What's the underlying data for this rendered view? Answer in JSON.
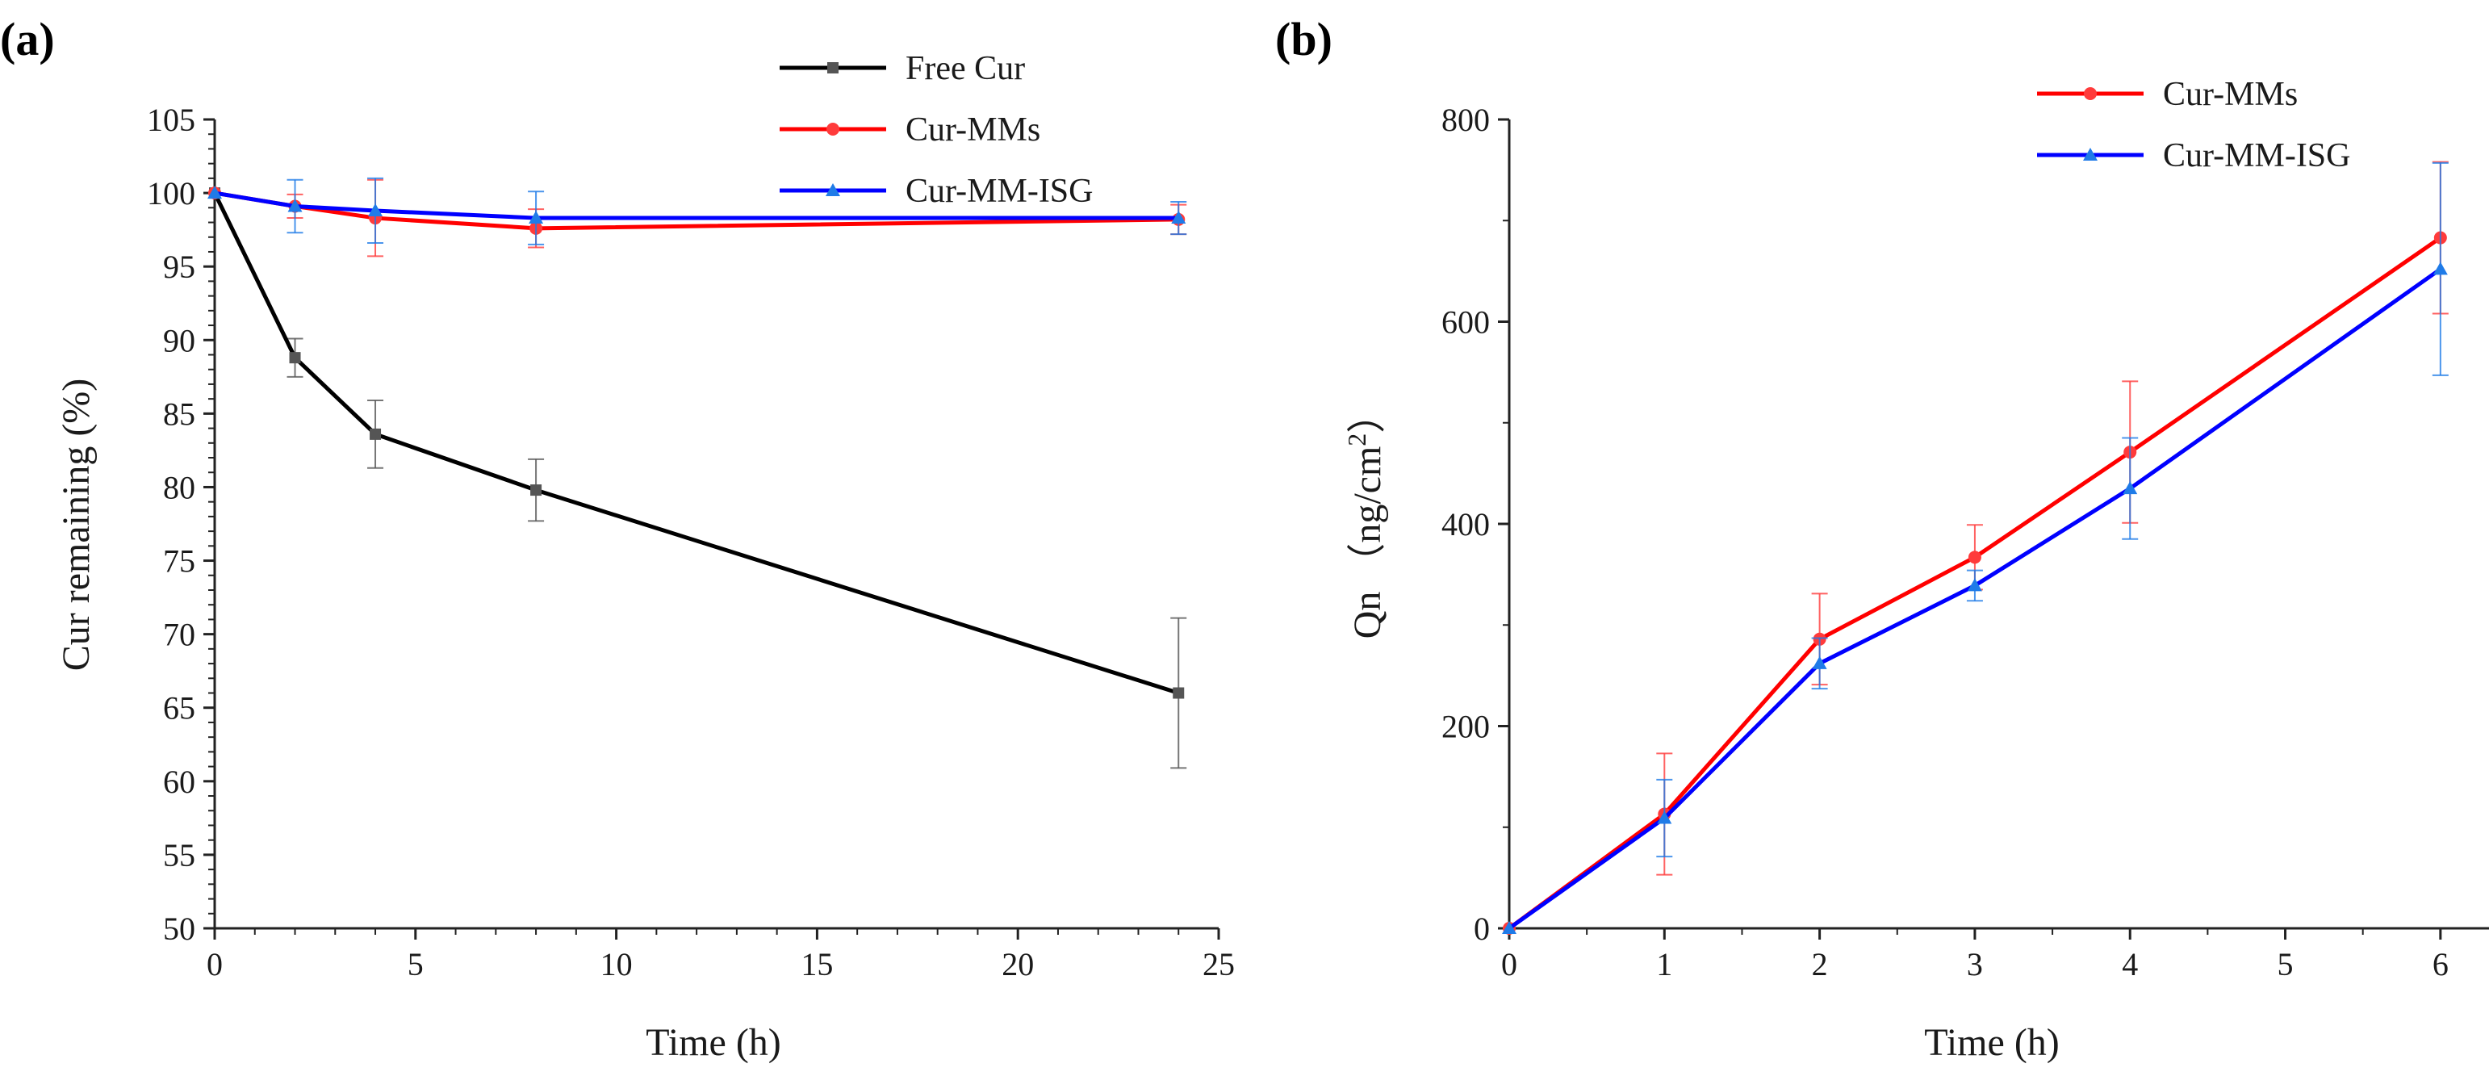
{
  "chart_data": [
    {
      "panel_label": "(a)",
      "type": "line",
      "xlabel": "Time (h)",
      "ylabel": "Cur remaining (%)",
      "xlim": [
        0,
        25
      ],
      "ylim": [
        50,
        105
      ],
      "xticks": [
        0,
        5,
        10,
        15,
        20,
        25
      ],
      "yticks": [
        50,
        55,
        60,
        65,
        70,
        75,
        80,
        85,
        90,
        95,
        100,
        105
      ],
      "grid": false,
      "legend_position": "top-center",
      "series": [
        {
          "name": "Free Cur",
          "color": "#000000",
          "marker": "square",
          "marker_color": "#555555",
          "x": [
            0,
            2,
            4,
            8,
            24
          ],
          "y": [
            100,
            88.8,
            83.6,
            79.8,
            66.0
          ],
          "err": [
            0,
            1.3,
            2.3,
            2.1,
            5.1
          ]
        },
        {
          "name": "Cur-MMs",
          "color": "#ff0000",
          "marker": "circle",
          "marker_color": "#ff3b3b",
          "x": [
            0,
            2,
            4,
            8,
            24
          ],
          "y": [
            100,
            99.1,
            98.3,
            97.6,
            98.2
          ],
          "err": [
            0,
            0.8,
            2.6,
            1.3,
            1.0
          ]
        },
        {
          "name": "Cur-MM-ISG",
          "color": "#0000ff",
          "marker": "triangle",
          "marker_color": "#1f7be8",
          "x": [
            0,
            2,
            4,
            8,
            24
          ],
          "y": [
            100,
            99.1,
            98.8,
            98.3,
            98.3
          ],
          "err": [
            0,
            1.8,
            2.2,
            1.8,
            1.1
          ]
        }
      ]
    },
    {
      "panel_label": "(b)",
      "type": "line",
      "xlabel": "Time (h)",
      "ylabel_main": "Qn （ng/cm",
      "ylabel_sup": "2",
      "ylabel_end": "）",
      "xlim": [
        0,
        6.5
      ],
      "ylim": [
        0,
        800
      ],
      "xticks": [
        0,
        1,
        2,
        3,
        4,
        5,
        6
      ],
      "yticks": [
        0,
        200,
        400,
        600,
        800
      ],
      "grid": false,
      "legend_position": "top-right",
      "series": [
        {
          "name": "Cur-MMs",
          "color": "#ff0000",
          "marker": "circle",
          "marker_color": "#ff3b3b",
          "x": [
            0,
            1,
            2,
            3,
            4,
            6
          ],
          "y": [
            0,
            113,
            286,
            367,
            471,
            683
          ],
          "err": [
            0,
            60,
            45,
            32,
            70,
            75
          ]
        },
        {
          "name": "Cur-MM-ISG",
          "color": "#0000ff",
          "marker": "triangle",
          "marker_color": "#1f7be8",
          "x": [
            0,
            1,
            2,
            3,
            4,
            6
          ],
          "y": [
            0,
            109,
            262,
            339,
            435,
            652
          ],
          "err": [
            0,
            38,
            25,
            15,
            50,
            105
          ]
        }
      ]
    }
  ]
}
